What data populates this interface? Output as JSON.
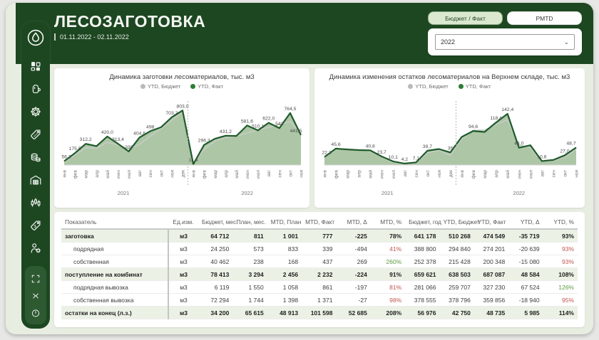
{
  "header": {
    "title": "ЛЕСОЗАГОТОВКА",
    "date_range": "01.11.2022 - 02.11.2022"
  },
  "controls": {
    "toggle_budget_fact": "Бюджет / Факт",
    "toggle_pmtd": "PMTD",
    "year_selected": "2022"
  },
  "sidebar": {
    "icons": [
      "drop-logo",
      "dashboard",
      "glove",
      "gear",
      "sale-tag",
      "coins",
      "warehouse",
      "candlestick-chart",
      "dollar-tag",
      "person-gear"
    ],
    "footer_icons": [
      "expand",
      "collapse",
      "power"
    ]
  },
  "colors": {
    "accent_dark_green": "#1d4721",
    "fact_line": "#1e5b2a",
    "fact_fill": "#a6c19e",
    "budget_line": "#c7ccc5",
    "negative_pct": "#c0574f",
    "positive_pct": "#5e9c44"
  },
  "chart_data": [
    {
      "type": "area",
      "title": "Динамика заготовки лесоматериалов, тыс. м3",
      "legend": [
        {
          "name": "YTD, Бюджет",
          "color": "#b8bcb6"
        },
        {
          "name": "YTD, Факт",
          "color": "#2e7d32"
        }
      ],
      "x": [
        "янв",
        "фев",
        "мар",
        "апр",
        "май",
        "июн",
        "июл",
        "авг",
        "сен",
        "окт",
        "ноя",
        "дек",
        "янв",
        "фев",
        "мар",
        "апр",
        "май",
        "июн",
        "июл",
        "авг",
        "сен",
        "окт",
        "ноя"
      ],
      "year_groups": [
        {
          "label": "2021",
          "count": 12
        },
        {
          "label": "2022",
          "count": 11
        }
      ],
      "series": [
        {
          "name": "YTD, Бюджет",
          "values": [
            40,
            150,
            255,
            245,
            335,
            295,
            235,
            305,
            425,
            535,
            660,
            778,
            28,
            230,
            355,
            405,
            425,
            470,
            515,
            555,
            595,
            640,
            468
          ]
        },
        {
          "name": "YTD, Факт",
          "values": [
            56.3,
            175.5,
            312.2,
            278,
            420.0,
            313.4,
            200,
            404.6,
            498,
            556,
            703.2,
            803.0,
            11.4,
            296.3,
            386,
            431.2,
            428,
            581.6,
            510.1,
            622.0,
            543,
            764.5,
            441.5
          ],
          "labels": [
            "56,3",
            "175,5",
            "312,2",
            "",
            "420,0",
            "313,4",
            "200",
            "404,6",
            "498",
            "",
            "703,2",
            "803,0",
            "11,4",
            "296,3",
            "",
            "431,2",
            "",
            "581,6",
            "510,1",
            "622,0",
            "543",
            "764,5",
            "441,5"
          ]
        }
      ],
      "ylim": [
        0,
        900
      ]
    },
    {
      "type": "area",
      "title": "Динамика изменения остатков лесоматериалов на Верхнем складе, тыс. м3",
      "legend": [
        {
          "name": "YTD, Бюджет",
          "color": "#b8bcb6"
        },
        {
          "name": "YTD, Факт",
          "color": "#2e7d32"
        }
      ],
      "x": [
        "янв",
        "фев",
        "мар",
        "апр",
        "май",
        "июн",
        "июл",
        "авг",
        "сен",
        "окт",
        "ноя",
        "дек",
        "янв",
        "фев",
        "мар",
        "апр",
        "май",
        "июн",
        "июл",
        "авг",
        "сен",
        "окт",
        "ноя"
      ],
      "year_groups": [
        {
          "label": "2021",
          "count": 12
        },
        {
          "label": "2022",
          "count": 11
        }
      ],
      "series": [
        {
          "name": "YTD, Бюджет",
          "values": [
            20,
            44,
            45,
            42,
            38,
            21,
            8,
            3,
            5,
            34,
            41,
            27,
            72,
            96,
            97,
            112,
            126,
            55,
            48,
            9,
            12,
            23,
            43
          ]
        },
        {
          "name": "YTD, Факт",
          "values": [
            22.3,
            45.6,
            43,
            41.5,
            40.8,
            23.7,
            10.1,
            4.2,
            7.1,
            39.7,
            44.5,
            35,
            78,
            94.6,
            92,
            118.4,
            142.4,
            48,
            55,
            10.8,
            14,
            27,
            48.7
          ],
          "labels": [
            "22,3",
            "45,6",
            "",
            "",
            "40,8",
            "23,7",
            "10,1",
            "4,2",
            "7,1",
            "39,7",
            "",
            "35",
            "",
            "94,6",
            "",
            "118,4",
            "142,4",
            "48,0",
            "",
            "10,8",
            "",
            "27,0",
            "48,7"
          ]
        }
      ],
      "ylim": [
        0,
        170
      ]
    }
  ],
  "table": {
    "columns": [
      "Показатель",
      "Ед.изм.",
      "Бюджет, мес.",
      "План, мес.",
      "MTD, План",
      "MTD, Факт",
      "MTD, Δ",
      "MTD, %",
      "Бюджет, год",
      "YTD, Бюджет",
      "YTD, Факт",
      "YTD, Δ",
      "YTD, %"
    ],
    "rows": [
      {
        "label": "заготовка",
        "group": true,
        "cells": [
          "м3",
          "64 712",
          "811",
          "1 001",
          "777",
          "-225",
          "78%",
          "641 178",
          "510 268",
          "474 549",
          "-35 719",
          "93%"
        ],
        "mtd_pct": "dark",
        "ytd_pct": "dark"
      },
      {
        "label": "подрядная",
        "group": false,
        "cells": [
          "м3",
          "24 250",
          "573",
          "833",
          "339",
          "-494",
          "41%",
          "388 800",
          "294 840",
          "274 201",
          "-20 639",
          "93%"
        ],
        "mtd_pct": "red",
        "ytd_pct": "red"
      },
      {
        "label": "собственная",
        "group": false,
        "cells": [
          "м3",
          "40 462",
          "238",
          "168",
          "437",
          "269",
          "260%",
          "252 378",
          "215 428",
          "200 348",
          "-15 080",
          "93%"
        ],
        "mtd_pct": "green",
        "ytd_pct": "red"
      },
      {
        "label": "поступление на комбинат",
        "group": true,
        "cells": [
          "м3",
          "78 413",
          "3 294",
          "2 456",
          "2 232",
          "-224",
          "91%",
          "659 621",
          "638 503",
          "687 087",
          "48 584",
          "108%"
        ],
        "mtd_pct": "dark",
        "ytd_pct": "dark"
      },
      {
        "label": "подрядная вывозка",
        "group": false,
        "cells": [
          "м3",
          "6 119",
          "1 550",
          "1 058",
          "861",
          "-197",
          "81%",
          "281 066",
          "259 707",
          "327 230",
          "67 524",
          "126%"
        ],
        "mtd_pct": "red",
        "ytd_pct": "green"
      },
      {
        "label": "собственная вывозка",
        "group": false,
        "cells": [
          "м3",
          "72 294",
          "1 744",
          "1 398",
          "1 371",
          "-27",
          "98%",
          "378 555",
          "378 796",
          "359 856",
          "-18 940",
          "95%"
        ],
        "mtd_pct": "red",
        "ytd_pct": "red"
      },
      {
        "label": "остатки на конец (л.з.)",
        "group": true,
        "cells": [
          "м3",
          "34 200",
          "65 615",
          "48 913",
          "101 598",
          "52 685",
          "208%",
          "56 976",
          "42 750",
          "48 735",
          "5 985",
          "114%"
        ],
        "mtd_pct": "dark",
        "ytd_pct": "dark"
      }
    ]
  }
}
